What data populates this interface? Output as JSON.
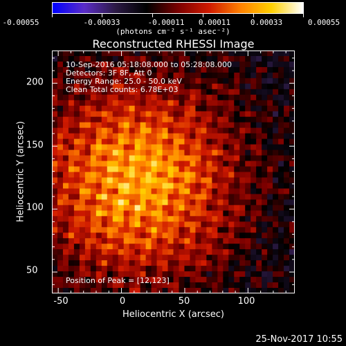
{
  "colorbar": {
    "ticks": [
      "-0.00055",
      "-0.00033",
      "-0.00011",
      "0.00011",
      "0.00033",
      "0.00055"
    ],
    "unit_label": "(photons cm⁻² s⁻¹ asec⁻²)"
  },
  "chart_data": {
    "type": "heatmap",
    "title": "Reconstructed RHESSI Image",
    "xlabel": "Heliocentric X (arcsec)",
    "ylabel": "Heliocentric Y (arcsec)",
    "xlim": [
      -55,
      137
    ],
    "ylim": [
      33,
      226
    ],
    "xticks": [
      "-50",
      "0",
      "50",
      "100"
    ],
    "yticks": [
      "50",
      "100",
      "150",
      "200"
    ],
    "color_range": [
      -0.00055,
      0.00055
    ],
    "colormap": [
      "#0000ff",
      "#5b2dc8",
      "#2d1a46",
      "#000000",
      "#7a0000",
      "#d01a00",
      "#ff8000",
      "#ffd000",
      "#ffffff"
    ],
    "peak_position": [
      12,
      123
    ],
    "annotations": {
      "time_range": "10-Sep-2016 05:18:08.000 to 05:28:08.000",
      "detectors": "Detectors: 3F 8F, Att 0",
      "energy": "Energy Range: 25.0 - 50.0 keV",
      "method": "Clean     Total counts: 6.78E+03",
      "peak": "Position of Peak = [12,123]"
    }
  },
  "footer_date": "25-Nov-2017 10:55"
}
